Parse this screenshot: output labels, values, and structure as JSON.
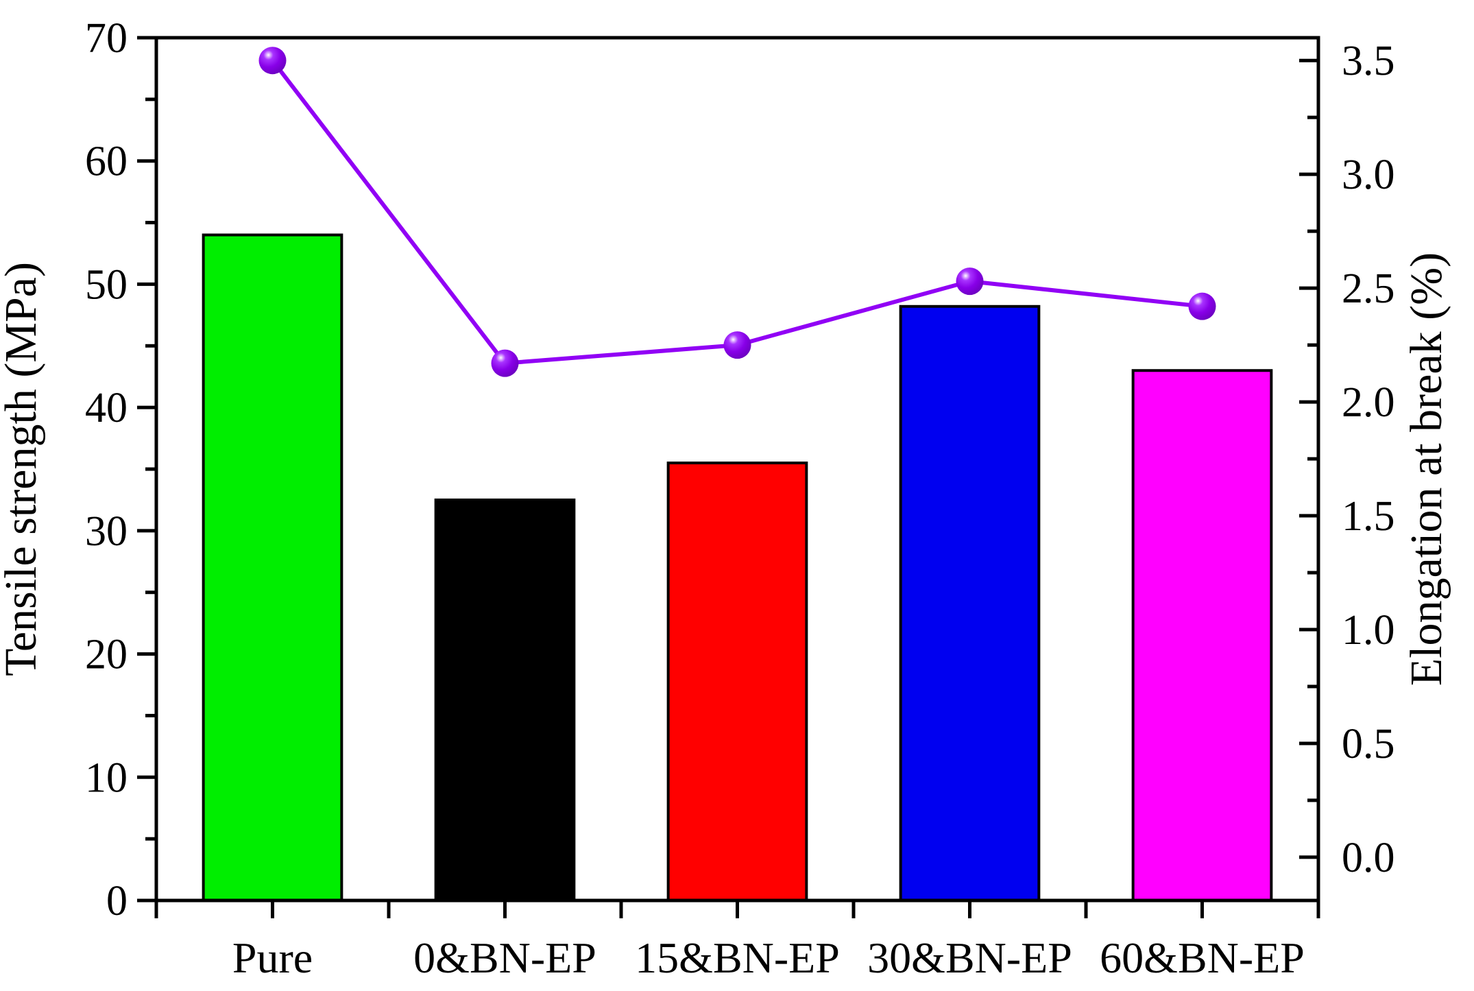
{
  "chart_data": {
    "type": "bar",
    "subtype": "dual-axis bar + line overlay",
    "title": "",
    "categories": [
      "Pure",
      "0&BN-EP",
      "15&BN-EP",
      "30&BN-EP",
      "60&BN-EP"
    ],
    "series": [
      {
        "name": "Tensile strength",
        "type": "bar",
        "axis": "left",
        "values": [
          54.0,
          32.5,
          35.5,
          48.2,
          43.0
        ],
        "bar_colors": [
          "#00ee00",
          "#000000",
          "#ff0000",
          "#0000f0",
          "#ff00ff"
        ],
        "bar_outline": "#000000"
      },
      {
        "name": "Elongation at break",
        "type": "line",
        "axis": "right",
        "values": [
          3.5,
          2.17,
          2.25,
          2.53,
          2.42
        ],
        "line_color": "#9100f5",
        "marker": "sphere",
        "marker_colors": {
          "highlight": "#ffffff",
          "mid": "#a833ff",
          "base": "#8800e8",
          "edge": "#6600b8"
        }
      }
    ],
    "left_axis": {
      "label": "Tensile strength (MPa)",
      "tick_labels": [
        "0",
        "10",
        "20",
        "30",
        "40",
        "50",
        "60",
        "70"
      ],
      "tick_values": [
        0,
        10,
        20,
        30,
        40,
        50,
        60,
        70
      ],
      "minor_step": 5,
      "ylim": [
        0,
        70
      ]
    },
    "right_axis": {
      "label": "Elongation at break (%)",
      "tick_labels": [
        "0.0",
        "0.5",
        "1.0",
        "1.5",
        "2.0",
        "2.5",
        "3.0",
        "3.5"
      ],
      "tick_values": [
        0,
        0.5,
        1.0,
        1.5,
        2.0,
        2.5,
        3.0,
        3.5
      ],
      "minor_step": 0.25,
      "ylim": [
        -0.19,
        3.6
      ]
    },
    "x_axis": {
      "tick_labels_shown": true,
      "ticks_at": "category centers and boundaries"
    },
    "grid": false,
    "legend": "none",
    "frame": true,
    "colors": {
      "axis": "#000000",
      "text": "#000000",
      "background": "#ffffff"
    }
  }
}
